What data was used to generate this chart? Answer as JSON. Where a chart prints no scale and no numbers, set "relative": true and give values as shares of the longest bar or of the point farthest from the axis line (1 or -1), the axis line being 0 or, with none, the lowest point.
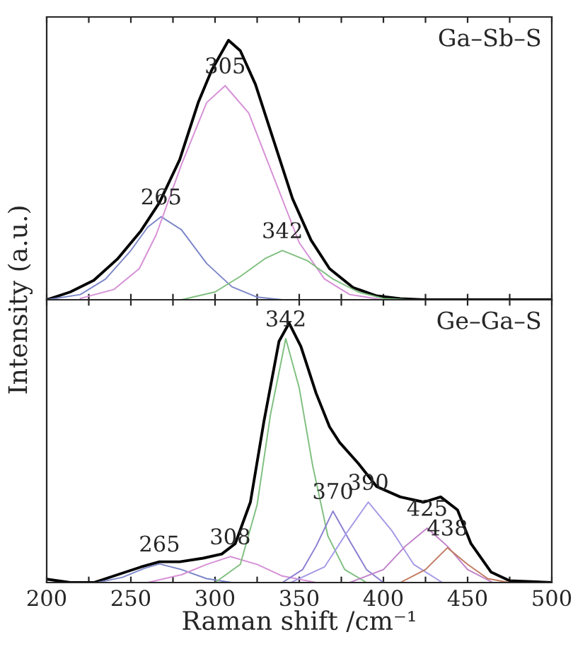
{
  "chart_data": [
    {
      "type": "line",
      "relative": true,
      "ylabel": "Intensity (a.u.)",
      "xlim": [
        200,
        500
      ],
      "xticks": [
        200,
        {
          "value": 225,
          "label": null
        },
        250,
        {
          "value": 275,
          "label": null
        },
        300,
        {
          "value": 325,
          "label": null
        },
        350,
        {
          "value": 375,
          "label": null
        },
        400,
        {
          "value": 425,
          "label": null
        },
        450,
        {
          "value": 475,
          "label": null
        },
        500
      ],
      "tick_labels": false,
      "grid": false,
      "legend": false,
      "annotations": [
        "Ga–Sb–S",
        {
          "text": "265",
          "x": 268,
          "y": 0.32
        },
        {
          "text": "305",
          "x": 306,
          "y": 0.825
        },
        {
          "text": "342",
          "x": 340,
          "y": 0.19
        }
      ],
      "series": [
        {
          "color": "#000000",
          "x": [
            200,
            214,
            228,
            242,
            256,
            267,
            279,
            290,
            298,
            308,
            315,
            324,
            335,
            346,
            357,
            368,
            382,
            396,
            410,
            424,
            500
          ],
          "values": [
            0,
            0.03,
            0.075,
            0.157,
            0.266,
            0.375,
            0.54,
            0.76,
            0.885,
            1.0,
            0.96,
            0.83,
            0.61,
            0.39,
            0.23,
            0.12,
            0.047,
            0.015,
            0.004,
            0,
            0
          ]
        },
        {
          "color": "#7b86c8",
          "x": [
            200,
            220,
            235,
            250,
            260,
            268,
            280,
            295,
            310,
            325,
            340
          ],
          "values": [
            0,
            0.02,
            0.08,
            0.19,
            0.28,
            0.32,
            0.27,
            0.14,
            0.05,
            0.01,
            0
          ]
        },
        {
          "color": "#d68fd6",
          "x": [
            220,
            240,
            255,
            265,
            280,
            295,
            306,
            320,
            335,
            350,
            365,
            380,
            400
          ],
          "values": [
            0.005,
            0.04,
            0.12,
            0.25,
            0.52,
            0.76,
            0.825,
            0.72,
            0.47,
            0.22,
            0.08,
            0.02,
            0
          ]
        },
        {
          "color": "#7fbf7f",
          "x": [
            280,
            300,
            315,
            330,
            340,
            355,
            370,
            385,
            400,
            415
          ],
          "values": [
            0,
            0.03,
            0.09,
            0.16,
            0.19,
            0.15,
            0.08,
            0.03,
            0.005,
            0
          ]
        }
      ]
    },
    {
      "type": "line",
      "relative": true,
      "xlabel": "Raman shift /cm⁻¹",
      "xlim": [
        200,
        500
      ],
      "xticks": [
        200,
        {
          "value": 225,
          "label": null
        },
        250,
        {
          "value": 275,
          "label": null
        },
        300,
        {
          "value": 325,
          "label": null
        },
        350,
        {
          "value": 375,
          "label": null
        },
        400,
        {
          "value": 425,
          "label": null
        },
        450,
        {
          "value": 475,
          "label": null
        },
        500
      ],
      "tick_labels": "x",
      "grid": false,
      "legend": false,
      "annotations": [
        "Ge–Ga–S",
        {
          "text": "265",
          "x": 267,
          "y": 0.072
        },
        {
          "text": "308",
          "x": 309,
          "y": 0.1
        },
        {
          "text": "342",
          "x": 342,
          "y": 0.94
        },
        {
          "text": "370",
          "x": 370,
          "y": 0.275
        },
        {
          "text": "390",
          "x": 391,
          "y": 0.31
        },
        {
          "text": "425",
          "x": 426,
          "y": 0.21
        },
        {
          "text": "438",
          "x": 438,
          "y": 0.134
        }
      ],
      "series": [
        {
          "color": "#000000",
          "x": [
            200,
            214,
            228,
            242,
            256,
            267,
            279,
            293,
            304,
            312,
            321,
            329,
            338,
            344,
            351,
            360,
            368,
            374,
            385,
            396,
            410,
            424,
            434,
            444,
            452,
            464,
            475,
            500
          ],
          "values": [
            0.013,
            0,
            0,
            0.03,
            0.06,
            0.08,
            0.08,
            0.094,
            0.11,
            0.15,
            0.31,
            0.62,
            0.93,
            1.0,
            0.91,
            0.73,
            0.6,
            0.54,
            0.46,
            0.37,
            0.33,
            0.31,
            0.33,
            0.28,
            0.15,
            0.04,
            0.007,
            0
          ]
        },
        {
          "color": "#7b86c8",
          "x": [
            230,
            245,
            258,
            267,
            280,
            295,
            310
          ],
          "values": [
            0,
            0.02,
            0.055,
            0.072,
            0.05,
            0.015,
            0
          ]
        },
        {
          "color": "#d68fd6",
          "x": [
            260,
            280,
            295,
            309,
            325,
            340,
            360
          ],
          "values": [
            0,
            0.03,
            0.07,
            0.1,
            0.07,
            0.025,
            0
          ]
        },
        {
          "color": "#7fbf7f",
          "x": [
            300,
            315,
            325,
            333,
            342,
            350,
            358,
            367,
            377,
            390
          ],
          "values": [
            0,
            0.07,
            0.3,
            0.65,
            0.94,
            0.75,
            0.45,
            0.18,
            0.05,
            0
          ]
        },
        {
          "color": "#8a7fd0",
          "x": [
            340,
            352,
            360,
            370,
            380,
            390,
            400
          ],
          "values": [
            0,
            0.05,
            0.14,
            0.275,
            0.16,
            0.05,
            0
          ]
        },
        {
          "color": "#a49ae6",
          "x": [
            345,
            365,
            378,
            391,
            405,
            418,
            435
          ],
          "values": [
            0,
            0.06,
            0.19,
            0.31,
            0.2,
            0.07,
            0
          ]
        },
        {
          "color": "#c080c8",
          "x": [
            380,
            400,
            413,
            426,
            438,
            450,
            465
          ],
          "values": [
            0,
            0.05,
            0.14,
            0.21,
            0.14,
            0.05,
            0
          ]
        },
        {
          "color": "#c07a60",
          "x": [
            410,
            425,
            438,
            450,
            462,
            475
          ],
          "values": [
            0,
            0.05,
            0.134,
            0.07,
            0.015,
            0
          ]
        }
      ]
    }
  ]
}
